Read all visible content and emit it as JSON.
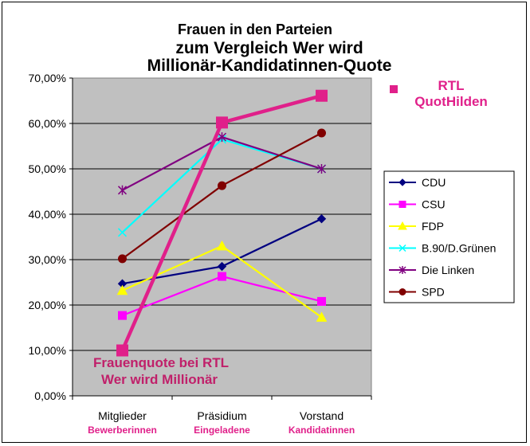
{
  "chart_data": {
    "type": "line",
    "title_lines": [
      "Frauen in den Parteien",
      "zum Vergleich Wer wird",
      "Millionär-Kandidatinnen-Quote"
    ],
    "categories": [
      "Mitglieder",
      "Präsidium",
      "Vorstand"
    ],
    "category_sublabels": [
      "Bewerberinnen",
      "Eingeladene",
      "Kandidatinnen"
    ],
    "y_ticks": [
      "0,00%",
      "10,00%",
      "20,00%",
      "30,00%",
      "40,00%",
      "50,00%",
      "60,00%",
      "70,00%"
    ],
    "ylim": [
      0,
      70
    ],
    "series": [
      {
        "name": "CDU",
        "values": [
          24.7,
          28.5,
          39.0
        ],
        "color": "#000080",
        "marker": "diamond"
      },
      {
        "name": "CSU",
        "values": [
          17.7,
          26.3,
          20.8
        ],
        "color": "#ff00ff",
        "marker": "square"
      },
      {
        "name": "FDP",
        "values": [
          23.2,
          33.0,
          17.3
        ],
        "color": "#ffff00",
        "marker": "triangle"
      },
      {
        "name": "B.90/D.Grünen",
        "values": [
          36.0,
          56.5,
          50.0
        ],
        "color": "#00ffff",
        "marker": "x"
      },
      {
        "name": "Die Linken",
        "values": [
          45.3,
          57.0,
          50.0
        ],
        "color": "#800080",
        "marker": "star"
      },
      {
        "name": "SPD",
        "values": [
          30.2,
          46.3,
          57.9
        ],
        "color": "#800000",
        "marker": "circle"
      }
    ],
    "rtl_series": {
      "name": "RTL QuotHilden",
      "values": [
        10.0,
        60.2,
        66.1
      ],
      "color": "#e0208a",
      "marker": "square"
    },
    "rtl_legend_lines": [
      "RTL",
      "QuotHilden"
    ],
    "annotation_lines": [
      "Frauenquote bei RTL",
      "Wer wird Millionär"
    ],
    "colors": {
      "plot_bg": "#c0c0c0",
      "sublabel": "#e0208a",
      "annotation": "#c0206a"
    }
  }
}
